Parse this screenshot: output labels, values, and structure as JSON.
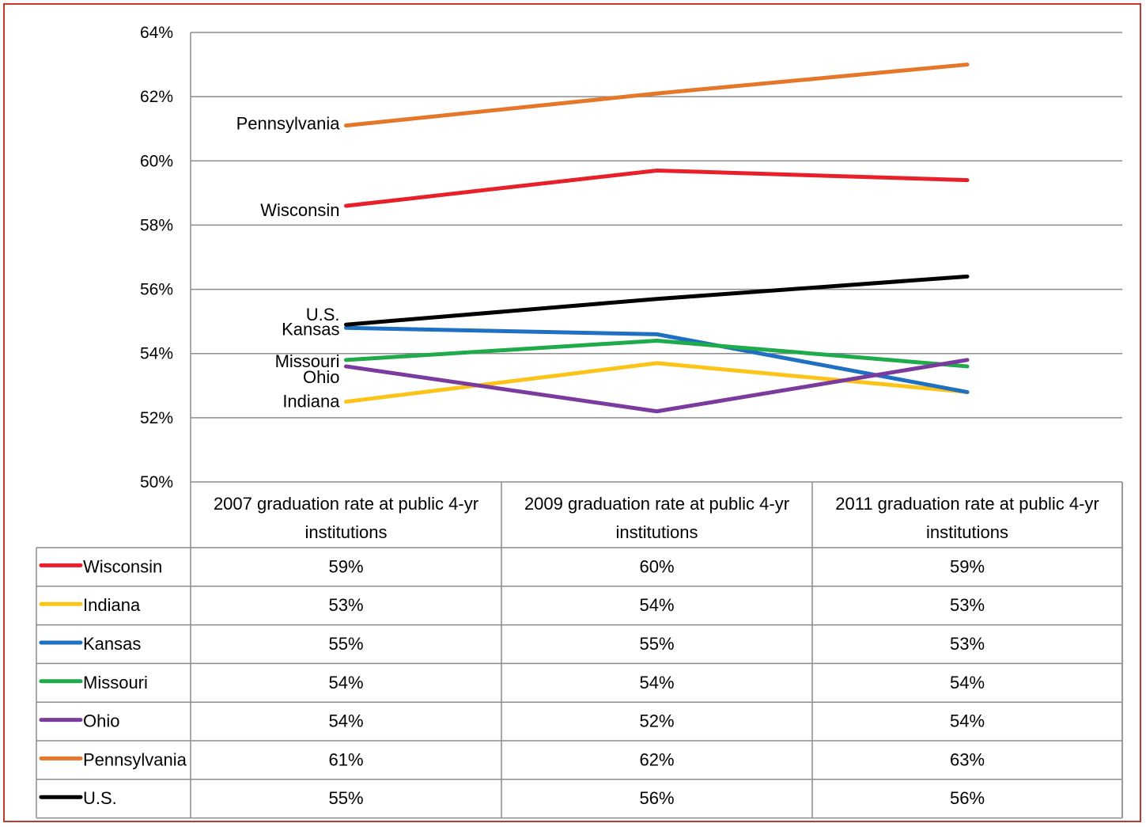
{
  "chart_data": {
    "type": "line",
    "categories": [
      "2007 graduation rate at public 4-yr institutions",
      "2009 graduation rate at public 4-yr institutions",
      "2011 graduation rate at public 4-yr institutions"
    ],
    "ylim": [
      50,
      64
    ],
    "yticks": [
      "50%",
      "52%",
      "54%",
      "56%",
      "58%",
      "60%",
      "62%",
      "64%"
    ],
    "grid": true,
    "series": [
      {
        "name": "Wisconsin",
        "color": "#e8202a",
        "values": [
          58.6,
          59.7,
          59.4
        ],
        "labels": [
          "59%",
          "60%",
          "59%"
        ]
      },
      {
        "name": "Indiana",
        "color": "#fcc419",
        "values": [
          52.5,
          53.7,
          52.8
        ],
        "labels": [
          "53%",
          "54%",
          "53%"
        ]
      },
      {
        "name": "Kansas",
        "color": "#1f6fc2",
        "values": [
          54.8,
          54.6,
          52.8
        ],
        "labels": [
          "55%",
          "55%",
          "53%"
        ]
      },
      {
        "name": "Missouri",
        "color": "#1faa4b",
        "values": [
          53.8,
          54.4,
          53.6
        ],
        "labels": [
          "54%",
          "54%",
          "54%"
        ]
      },
      {
        "name": "Ohio",
        "color": "#7b3a9e",
        "values": [
          53.6,
          52.2,
          53.8
        ],
        "labels": [
          "54%",
          "52%",
          "54%"
        ]
      },
      {
        "name": "Pennsylvania",
        "color": "#e5772a",
        "values": [
          61.1,
          62.1,
          63.0
        ],
        "labels": [
          "61%",
          "62%",
          "63%"
        ]
      },
      {
        "name": "U.S.",
        "color": "#000000",
        "values": [
          54.9,
          55.7,
          56.4
        ],
        "labels": [
          "55%",
          "56%",
          "56%"
        ]
      }
    ]
  }
}
